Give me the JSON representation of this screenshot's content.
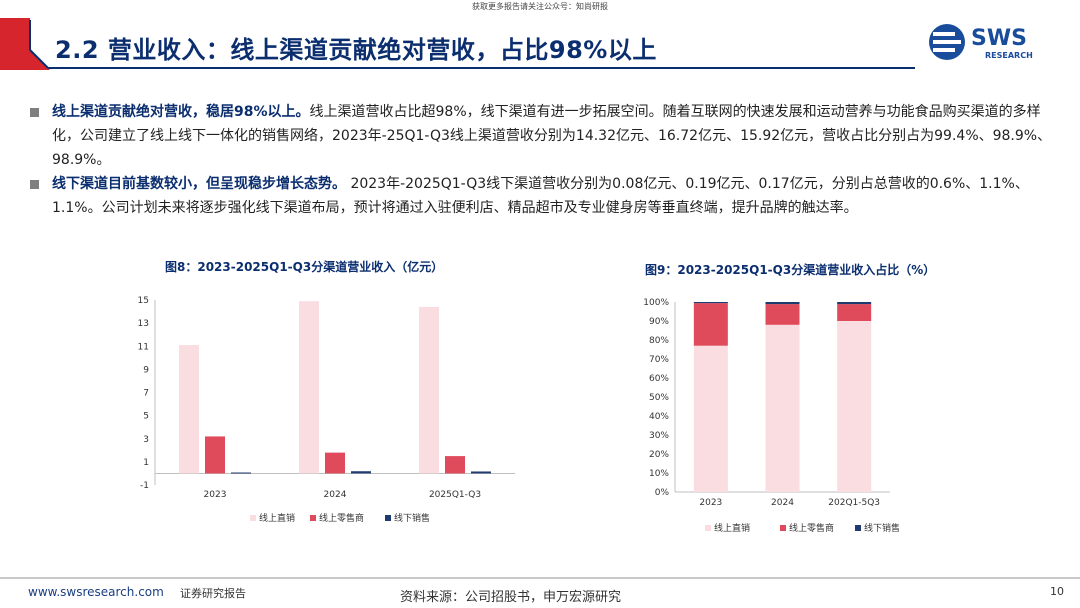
{
  "top_note": "获取更多报告请关注公众号：知尚研报",
  "slide_title": "2.2 营业收入：线上渠道贡献绝对营收，占比98%以上",
  "logo": {
    "text": "SWS",
    "subtext": "RESEARCH"
  },
  "bullets": [
    {
      "bold": "线上渠道贡献绝对营收，稳居98%以上。",
      "text": "线上渠道营收占比超98%，线下渠道有进一步拓展空间。随着互联网的快速发展和运动营养与功能食品购买渠道的多样化，公司建立了线上线下一体化的销售网络，2023年-25Q1-Q3线上渠道营收分别为14.32亿元、16.72亿元、15.92亿元，营收占比分别占为99.4%、98.9%、98.9%。"
    },
    {
      "bold": "线下渠道目前基数较小，但呈现稳步增长态势。",
      "text": " 2023年-2025Q1-Q3线下渠道营收分别为0.08亿元、0.19亿元、0.17亿元，分别占总营收的0.6%、1.1%、1.1%。公司计划未来将逐步强化线下渠道布局，预计将通过入驻便利店、精品超市及专业健身房等垂直终端，提升品牌的触达率。"
    }
  ],
  "colors": {
    "online_direct": "#f9dde1",
    "online_retail": "#e04b5c",
    "offline": "#1f3a6e",
    "title": "#0b2e6f",
    "accent_red": "#d7252d"
  },
  "chart_data": [
    {
      "type": "bar",
      "title": "图8：2023-2025Q1-Q3分渠道营业收入（亿元）",
      "categories": [
        "2023",
        "2024",
        "2025Q1-Q3"
      ],
      "series": [
        {
          "name": "线上直销",
          "values": [
            11.1,
            14.9,
            14.4
          ]
        },
        {
          "name": "线上零售商",
          "values": [
            3.2,
            1.8,
            1.5
          ]
        },
        {
          "name": "线下销售",
          "values": [
            0.08,
            0.19,
            0.17
          ]
        }
      ],
      "yticks": [
        "-1",
        "1",
        "3",
        "5",
        "7",
        "9",
        "11",
        "13",
        "15"
      ],
      "ylim": [
        -1,
        15
      ],
      "legend_position": "bottom"
    },
    {
      "type": "bar",
      "stacked": true,
      "title": "图9：2023-2025Q1-Q3分渠道营业收入占比（%）",
      "categories": [
        "2023",
        "2024",
        "202Q1-5Q3"
      ],
      "series": [
        {
          "name": "线上直销",
          "values": [
            77,
            88,
            90
          ]
        },
        {
          "name": "线上零售商",
          "values": [
            22.4,
            10.9,
            8.9
          ]
        },
        {
          "name": "线下销售",
          "values": [
            0.6,
            1.1,
            1.1
          ]
        }
      ],
      "yticks": [
        "0%",
        "10%",
        "20%",
        "30%",
        "40%",
        "50%",
        "60%",
        "70%",
        "80%",
        "90%",
        "100%"
      ],
      "ylim": [
        0,
        100
      ],
      "legend_position": "bottom"
    }
  ],
  "footer": {
    "url": "www.swsresearch.com",
    "label": "证券研究报告",
    "source": "资料来源：公司招股书，申万宏源研究",
    "page": "10"
  }
}
